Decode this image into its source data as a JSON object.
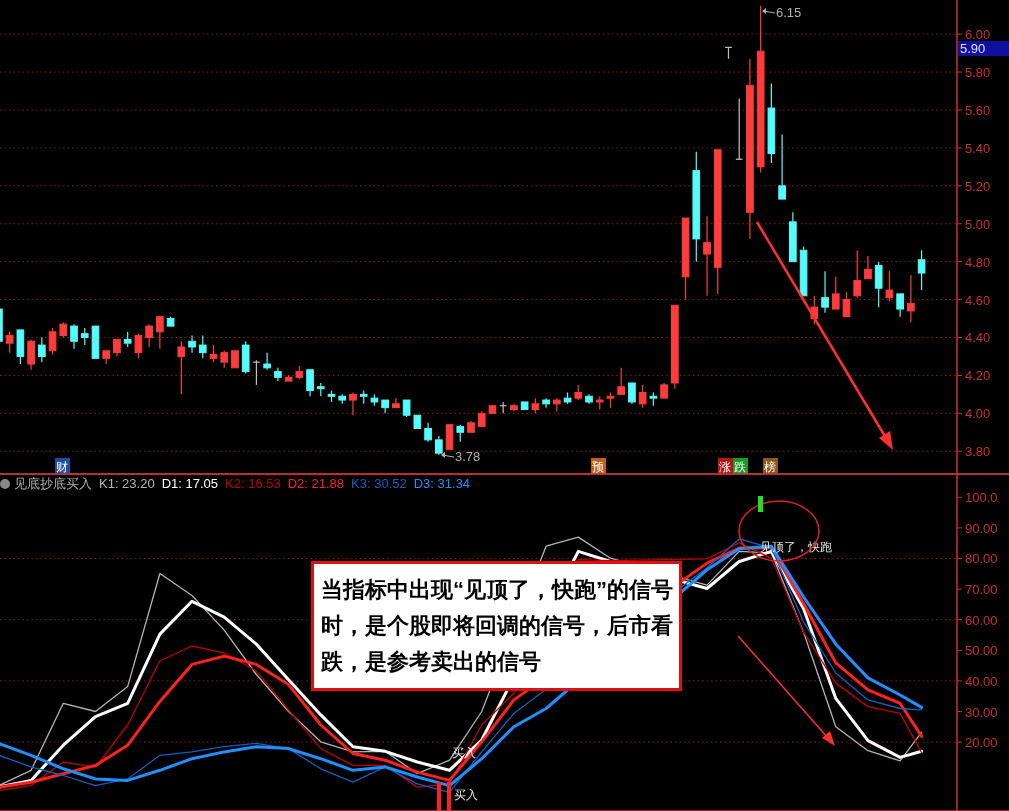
{
  "chart_data": [
    {
      "type": "candlestick",
      "categories": [
        null,
        null,
        null,
        null,
        null,
        null,
        null,
        null,
        null,
        null,
        null,
        null,
        null,
        null,
        null,
        null,
        null,
        null,
        null,
        null,
        null,
        null,
        null,
        null,
        null,
        null,
        null,
        null,
        null,
        null,
        null,
        null,
        null,
        null,
        null,
        null,
        null,
        null,
        null,
        null,
        null,
        null,
        null,
        null,
        null,
        null,
        null,
        null,
        null,
        null,
        null,
        null,
        null,
        null,
        null,
        null,
        null,
        null,
        null,
        null,
        null,
        null,
        null,
        null,
        null,
        null,
        null,
        null,
        null,
        null,
        null,
        null,
        null,
        null,
        null,
        null,
        null,
        null,
        null,
        null,
        null,
        null,
        null,
        null,
        null,
        null,
        null
      ],
      "ohlc": [
        [
          4.55,
          4.55,
          4.38,
          4.38
        ],
        [
          4.37,
          4.43,
          4.32,
          4.41
        ],
        [
          4.44,
          4.44,
          4.26,
          4.3
        ],
        [
          4.26,
          4.39,
          4.23,
          4.38
        ],
        [
          4.36,
          4.4,
          4.27,
          4.3
        ],
        [
          4.33,
          4.45,
          4.31,
          4.43
        ],
        [
          4.41,
          4.48,
          4.4,
          4.47
        ],
        [
          4.46,
          4.47,
          4.34,
          4.38
        ],
        [
          4.42,
          4.45,
          4.36,
          4.4
        ],
        [
          4.46,
          4.46,
          4.29,
          4.29
        ],
        [
          4.29,
          4.33,
          4.26,
          4.33
        ],
        [
          4.32,
          4.39,
          4.3,
          4.39
        ],
        [
          4.39,
          4.43,
          4.35,
          4.37
        ],
        [
          4.32,
          4.42,
          4.29,
          4.41
        ],
        [
          4.4,
          4.47,
          4.35,
          4.46
        ],
        [
          4.43,
          4.51,
          4.34,
          4.51
        ],
        [
          4.5,
          4.51,
          4.46,
          4.46
        ],
        [
          4.3,
          4.38,
          4.1,
          4.35
        ],
        [
          4.38,
          4.41,
          4.32,
          4.35
        ],
        [
          4.36,
          4.41,
          4.29,
          4.32
        ],
        [
          4.29,
          4.36,
          4.27,
          4.31
        ],
        [
          4.27,
          4.33,
          4.24,
          4.32
        ],
        [
          4.24,
          4.33,
          4.24,
          4.33
        ],
        [
          4.36,
          4.38,
          4.21,
          4.22
        ],
        [
          4.27,
          4.28,
          4.15,
          4.27
        ],
        [
          4.26,
          4.32,
          4.23,
          4.24
        ],
        [
          4.22,
          4.24,
          4.17,
          4.19
        ],
        [
          4.17,
          4.2,
          4.17,
          4.19
        ],
        [
          4.19,
          4.25,
          4.18,
          4.22
        ],
        [
          4.23,
          4.23,
          4.09,
          4.12
        ],
        [
          4.14,
          4.16,
          4.09,
          4.13
        ],
        [
          4.1,
          4.12,
          4.06,
          4.09
        ],
        [
          4.09,
          4.1,
          4.05,
          4.07
        ],
        [
          4.07,
          4.11,
          3.99,
          4.1
        ],
        [
          4.1,
          4.12,
          4.05,
          4.09
        ],
        [
          4.08,
          4.1,
          4.04,
          4.06
        ],
        [
          4.07,
          4.07,
          4.0,
          4.03
        ],
        [
          4.03,
          4.08,
          4.03,
          4.05
        ],
        [
          4.07,
          4.07,
          3.98,
          3.99
        ],
        [
          3.99,
          3.99,
          3.92,
          3.92
        ],
        [
          3.92,
          3.95,
          3.85,
          3.86
        ],
        [
          3.86,
          3.88,
          3.78,
          3.79
        ],
        [
          3.81,
          3.94,
          3.81,
          3.94
        ],
        [
          3.93,
          3.94,
          3.85,
          3.9
        ],
        [
          3.9,
          3.96,
          3.9,
          3.95
        ],
        [
          3.93,
          4.01,
          3.93,
          4.0
        ],
        [
          4.0,
          4.04,
          4.0,
          4.04
        ],
        [
          4.04,
          4.06,
          4.0,
          4.04
        ],
        [
          4.02,
          4.05,
          4.01,
          4.04
        ],
        [
          4.06,
          4.06,
          4.02,
          4.02
        ],
        [
          4.02,
          4.08,
          4.0,
          4.05
        ],
        [
          4.07,
          4.08,
          4.03,
          4.05
        ],
        [
          4.05,
          4.08,
          4.01,
          4.07
        ],
        [
          4.08,
          4.11,
          4.05,
          4.06
        ],
        [
          4.08,
          4.15,
          4.07,
          4.11
        ],
        [
          4.09,
          4.1,
          4.05,
          4.06
        ],
        [
          4.06,
          4.09,
          4.02,
          4.07
        ],
        [
          4.08,
          4.11,
          4.03,
          4.09
        ],
        [
          4.1,
          4.24,
          4.1,
          4.14
        ],
        [
          4.16,
          4.16,
          4.05,
          4.06
        ],
        [
          4.05,
          4.15,
          4.03,
          4.11
        ],
        [
          4.09,
          4.11,
          4.04,
          4.08
        ],
        [
          4.08,
          4.16,
          4.08,
          4.15
        ],
        [
          4.16,
          4.57,
          4.13,
          4.57
        ],
        [
          4.72,
          5.03,
          4.6,
          5.03
        ],
        [
          5.28,
          5.38,
          4.8,
          4.92
        ],
        [
          4.84,
          5.04,
          4.62,
          4.9
        ],
        [
          4.77,
          5.39,
          4.63,
          5.39
        ],
        [
          5.93,
          5.93,
          5.87,
          5.93
        ],
        [
          5.34,
          5.66,
          5.34,
          5.34
        ],
        [
          5.06,
          5.87,
          4.92,
          5.73
        ],
        [
          5.3,
          6.15,
          5.27,
          5.91
        ],
        [
          5.61,
          5.74,
          5.32,
          5.37
        ],
        [
          5.2,
          5.47,
          5.13,
          5.13
        ],
        [
          5.01,
          5.06,
          4.8,
          4.8
        ],
        [
          4.86,
          4.88,
          4.62,
          4.62
        ],
        [
          4.5,
          4.62,
          4.47,
          4.56
        ],
        [
          4.61,
          4.75,
          4.53,
          4.56
        ],
        [
          4.55,
          4.72,
          4.55,
          4.63
        ],
        [
          4.51,
          4.64,
          4.51,
          4.6
        ],
        [
          4.62,
          4.86,
          4.61,
          4.7
        ],
        [
          4.71,
          4.83,
          4.71,
          4.76
        ],
        [
          4.78,
          4.8,
          4.56,
          4.66
        ],
        [
          4.61,
          4.75,
          4.59,
          4.65
        ],
        [
          4.63,
          4.63,
          4.51,
          4.55
        ],
        [
          4.54,
          4.73,
          4.48,
          4.58
        ],
        [
          4.81,
          4.86,
          4.65,
          4.74
        ]
      ],
      "colors": [
        "#54fcfc",
        "#ff3c3c",
        "#54fcfc",
        "#ff3c3c",
        "#54fcfc",
        "#ff3c3c",
        "#ff3c3c",
        "#54fcfc",
        "#54fcfc",
        "#54fcfc",
        "#ff3c3c",
        "#ff3c3c",
        "#54fcfc",
        "#ff3c3c",
        "#ff3c3c",
        "#ff3c3c",
        "#54fcfc",
        "#ff3c3c",
        "#54fcfc",
        "#54fcfc",
        "#ff3c3c",
        "#ff3c3c",
        "#ff3c3c",
        "#54fcfc",
        "#c0c0c0",
        "#54fcfc",
        "#54fcfc",
        "#ff3c3c",
        "#ff3c3c",
        "#54fcfc",
        "#54fcfc",
        "#54fcfc",
        "#54fcfc",
        "#ff3c3c",
        "#54fcfc",
        "#54fcfc",
        "#54fcfc",
        "#ff3c3c",
        "#54fcfc",
        "#54fcfc",
        "#54fcfc",
        "#54fcfc",
        "#ff3c3c",
        "#54fcfc",
        "#ff3c3c",
        "#ff3c3c",
        "#ff3c3c",
        "#c0c0c0",
        "#ff3c3c",
        "#54fcfc",
        "#ff3c3c",
        "#54fcfc",
        "#ff3c3c",
        "#54fcfc",
        "#ff3c3c",
        "#54fcfc",
        "#ff3c3c",
        "#ff3c3c",
        "#ff3c3c",
        "#54fcfc",
        "#ff3c3c",
        "#54fcfc",
        "#ff3c3c",
        "#ff3c3c",
        "#ff3c3c",
        "#54fcfc",
        "#ff3c3c",
        "#ff3c3c",
        "#c0c0c0",
        "#c0c0c0",
        "#ff3c3c",
        "#ff3c3c",
        "#54fcfc",
        "#54fcfc",
        "#54fcfc",
        "#54fcfc",
        "#ff3c3c",
        "#54fcfc",
        "#ff3c3c",
        "#ff3c3c",
        "#ff3c3c",
        "#ff3c3c",
        "#54fcfc",
        "#ff3c3c",
        "#54fcfc",
        "#ff3c3c",
        "#54fcfc"
      ],
      "ylim": [
        3.68,
        6.18
      ],
      "yticks": [
        {
          "value": 3.8,
          "label": "3.80"
        },
        {
          "value": 4.0,
          "label": "4.00"
        },
        {
          "value": 4.2,
          "label": "4.20"
        },
        {
          "value": 4.4,
          "label": "4.40"
        },
        {
          "value": 4.6,
          "label": "4.60"
        },
        {
          "value": 4.8,
          "label": "4.80"
        },
        {
          "value": 5.0,
          "label": "5.00"
        },
        {
          "value": 5.2,
          "label": "5.20"
        },
        {
          "value": 5.4,
          "label": "5.40"
        },
        {
          "value": 5.6,
          "label": "5.60"
        },
        {
          "value": 5.8,
          "label": "5.80"
        },
        {
          "value": 6.0,
          "label": "6.00"
        }
      ],
      "grid": "y",
      "tick_labels": "y",
      "annotations": [
        "6.15",
        "3.78",
        "5.90",
        "财",
        "预",
        "涨",
        "跌",
        "榜"
      ]
    },
    {
      "type": "line",
      "legend_title": "见底抄底买入",
      "categories": [
        null,
        null,
        null,
        null,
        null,
        null,
        null,
        null,
        null,
        null,
        null,
        null,
        null,
        null,
        null,
        null,
        null,
        null,
        null,
        null,
        null,
        null,
        null,
        null,
        null,
        null,
        null,
        null,
        null,
        null,
        null,
        null,
        null,
        null,
        null,
        null,
        null,
        null,
        null,
        null,
        null,
        null,
        null,
        null,
        null,
        null,
        null,
        null,
        null,
        null,
        null,
        null,
        null,
        null,
        null,
        null,
        null,
        null,
        null,
        null,
        null,
        null,
        null,
        null,
        null,
        null,
        null,
        null,
        null,
        null,
        null,
        null,
        null,
        null,
        null,
        null,
        null,
        null,
        null,
        null,
        null,
        null,
        null,
        null,
        null,
        null,
        null
      ],
      "series": [
        {
          "name": "K1: 23.20",
          "color": "#b4b4b4",
          "values": [
            5.8,
            null,
            null,
            10.8,
            null,
            null,
            32.7,
            null,
            null,
            30.0,
            null,
            null,
            38.2,
            null,
            null,
            75.1,
            null,
            null,
            67.9,
            null,
            null,
            56.6,
            null,
            null,
            42.1,
            null,
            null,
            30.0,
            null,
            null,
            20.1,
            null,
            null,
            16.8,
            null,
            null,
            17.0,
            null,
            null,
            9.7,
            null,
            null,
            14.1,
            null,
            null,
            30.0,
            null,
            null,
            null,
            null,
            null,
            84,
            null,
            null,
            87.0,
            null,
            null,
            80.1,
            null,
            null,
            null,
            null,
            null,
            null,
            null,
            null,
            71.3,
            null,
            null,
            82.3,
            null,
            null,
            81.8,
            null,
            null,
            55.9,
            null,
            null,
            25.0,
            null,
            null,
            17.2,
            null,
            null,
            13.9,
            null,
            23.2
          ]
        },
        {
          "name": "D1: 17.05",
          "color": "#ffffff",
          "values": [
            5.3,
            null,
            null,
            7.5,
            null,
            null,
            19.0,
            null,
            null,
            28.3,
            null,
            null,
            32.7,
            null,
            null,
            55.3,
            null,
            null,
            66.0,
            null,
            null,
            60.8,
            null,
            null,
            52.0,
            null,
            null,
            40.4,
            null,
            null,
            28.9,
            null,
            null,
            18.5,
            null,
            null,
            17.0,
            null,
            null,
            13.5,
            null,
            null,
            10.8,
            null,
            null,
            20.7,
            null,
            null,
            null,
            null,
            null,
            null,
            null,
            null,
            82.3,
            null,
            null,
            79.0,
            null,
            null,
            null,
            null,
            null,
            null,
            null,
            null,
            70.2,
            null,
            null,
            79.0,
            null,
            null,
            82.3,
            null,
            null,
            63.6,
            null,
            null,
            34.3,
            null,
            null,
            20.5,
            null,
            null,
            15.0,
            null,
            17.05
          ]
        },
        {
          "name": "K2: 16.53",
          "color": "#c00000",
          "values": [
            4.2,
            null,
            null,
            5.8,
            null,
            null,
            13.5,
            null,
            null,
            11.8,
            null,
            null,
            25.6,
            null,
            null,
            46.5,
            null,
            null,
            51.4,
            null,
            null,
            49.2,
            null,
            null,
            43.2,
            null,
            null,
            30.5,
            null,
            null,
            17.9,
            null,
            null,
            12.4,
            null,
            null,
            12.4,
            null,
            null,
            5.3,
            null,
            null,
            6.4,
            null,
            null,
            25.6,
            null,
            null,
            36,
            null,
            null,
            null,
            null,
            null,
            79.6,
            null,
            null,
            79.3,
            null,
            null,
            null,
            null,
            null,
            null,
            null,
            null,
            79.9,
            null,
            null,
            85.1,
            null,
            null,
            80.1,
            null,
            null,
            55.9,
            null,
            null,
            39.3,
            null,
            null,
            31.6,
            null,
            null,
            29.4,
            null,
            16.53
          ]
        },
        {
          "name": "D2: 21.88",
          "color": "#ff2020",
          "values": [
            5.3,
            null,
            null,
            6.9,
            null,
            null,
            9.7,
            null,
            null,
            12.4,
            null,
            null,
            19.0,
            null,
            null,
            33.3,
            null,
            null,
            45.4,
            null,
            null,
            48.1,
            null,
            null,
            45.4,
            null,
            null,
            38.8,
            null,
            null,
            25.6,
            null,
            null,
            16.3,
            null,
            null,
            14.1,
            null,
            null,
            10.2,
            null,
            null,
            7.5,
            null,
            null,
            20.1,
            null,
            null,
            33.8,
            null,
            null,
            null,
            null,
            null,
            null,
            null,
            null,
            null,
            null,
            null,
            null,
            null,
            null,
            null,
            null,
            null,
            78.5,
            null,
            null,
            83.4,
            null,
            null,
            83.4,
            null,
            null,
            65.2,
            null,
            null,
            45.9,
            null,
            null,
            37.1,
            null,
            null,
            32.7,
            null,
            21.88
          ]
        },
        {
          "name": "K3: 30.52",
          "color": "#1060c0",
          "values": [
            15.7,
            null,
            null,
            11.9,
            null,
            null,
            9.1,
            null,
            null,
            5.8,
            null,
            null,
            8.0,
            null,
            null,
            15.7,
            null,
            null,
            16.8,
            null,
            null,
            18.5,
            null,
            null,
            19.6,
            null,
            null,
            17.9,
            null,
            null,
            11.3,
            null,
            null,
            6.9,
            null,
            null,
            11.9,
            null,
            null,
            6.4,
            null,
            null,
            3.6,
            null,
            null,
            16.8,
            null,
            null,
            29.4,
            null,
            null,
            null,
            null,
            null,
            null,
            null,
            null,
            null,
            null,
            null,
            null,
            null,
            null,
            null,
            null,
            null,
            77.0,
            null,
            null,
            86.4,
            null,
            null,
            83.4,
            null,
            null,
            59.2,
            null,
            null,
            42.6,
            null,
            null,
            33.8,
            null,
            null,
            31.0,
            null,
            30.52
          ]
        },
        {
          "name": "D3: 31.34",
          "color": "#1e90ff",
          "values": [
            19.6,
            null,
            null,
            15.7,
            null,
            null,
            11.3,
            null,
            null,
            8.0,
            null,
            null,
            7.5,
            null,
            null,
            10.8,
            null,
            null,
            14.6,
            null,
            null,
            16.8,
            null,
            null,
            18.5,
            null,
            null,
            17.9,
            null,
            null,
            14.6,
            null,
            null,
            10.8,
            null,
            null,
            11.9,
            null,
            null,
            8.6,
            null,
            null,
            5.8,
            null,
            null,
            14.6,
            null,
            null,
            25.0,
            null,
            null,
            31.0,
            null,
            null,
            null,
            null,
            null,
            null,
            null,
            null,
            null,
            null,
            null,
            null,
            null,
            null,
            76.3,
            null,
            null,
            83.2,
            null,
            null,
            84.0,
            null,
            null,
            67.4,
            null,
            null,
            52.0,
            null,
            null,
            41.0,
            null,
            null,
            35.4,
            null,
            31.34
          ]
        }
      ],
      "ylim": [
        -2.5,
        107.6
      ],
      "yticks": [
        {
          "value": 20,
          "label": "20.00"
        },
        {
          "value": 30,
          "label": "30.00"
        },
        {
          "value": 40,
          "label": "40.00"
        },
        {
          "value": 50,
          "label": "50.00"
        },
        {
          "value": 60,
          "label": "60.00"
        },
        {
          "value": 70,
          "label": "70.00"
        },
        {
          "value": 80,
          "label": "80.00"
        },
        {
          "value": 90,
          "label": "90.00"
        },
        {
          "value": 100,
          "label": "100.0"
        }
      ],
      "tick_labels": "y",
      "ref_lines": [
        {
          "axis": "y",
          "value": 20,
          "color": "#8b1a1a",
          "line_style": "dotted"
        },
        {
          "axis": "y",
          "value": 40,
          "color": "#8b1a1a",
          "line_style": "dotted"
        },
        {
          "axis": "y",
          "value": 60,
          "color": "#8b1a1a",
          "line_style": "dotted"
        },
        {
          "axis": "y",
          "value": 80,
          "color": "#8b1a1a",
          "line_style": "dotted"
        }
      ],
      "annotations": [
        "见顶了，快跑",
        "买入",
        "买入",
        "当指标中出现“见顶了，快跑”的信号时，是个股即将回调的信号，后市看跌，是参考卖出的信号"
      ]
    }
  ]
}
